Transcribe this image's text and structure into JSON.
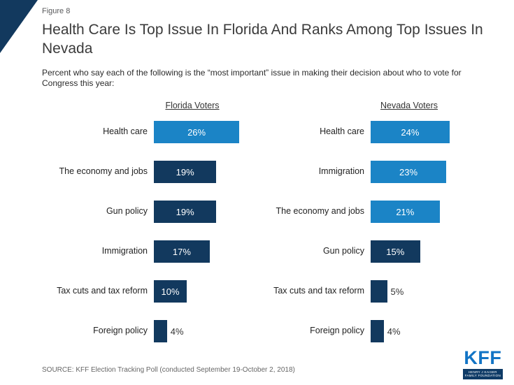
{
  "figure_label": "Figure 8",
  "title": "Health Care Is Top Issue In Florida And Ranks Among Top Issues In Nevada",
  "subtitle": "Percent who say each of the following is the “most important” issue in making their decision about who to vote for Congress this year:",
  "source": "SOURCE: KFF Election Tracking Poll (conducted September 19-October 2, 2018)",
  "logo": {
    "name": "KFF",
    "line1": "HENRY J KAISER",
    "line2": "FAMILY FOUNDATION"
  },
  "colors": {
    "light_blue": "#1b84c6",
    "navy": "#12395e",
    "title_text": "#3b3b3b",
    "source_text": "#666666",
    "logo_blue": "#1274c5"
  },
  "chart_data": [
    {
      "type": "bar",
      "orientation": "horizontal",
      "title": "Florida Voters",
      "unit": "%",
      "xlim": [
        0,
        30
      ],
      "categories": [
        "Health care",
        "The economy and jobs",
        "Gun policy",
        "Immigration",
        "Tax cuts and tax reform",
        "Foreign policy"
      ],
      "values": [
        26,
        19,
        19,
        17,
        10,
        4
      ],
      "highlighted": [
        true,
        false,
        false,
        false,
        false,
        false
      ]
    },
    {
      "type": "bar",
      "orientation": "horizontal",
      "title": "Nevada Voters",
      "unit": "%",
      "xlim": [
        0,
        30
      ],
      "categories": [
        "Health care",
        "Immigration",
        "The economy and jobs",
        "Gun policy",
        "Tax cuts and tax reform",
        "Foreign policy"
      ],
      "values": [
        24,
        23,
        21,
        15,
        5,
        4
      ],
      "highlighted": [
        true,
        true,
        true,
        false,
        false,
        false
      ]
    }
  ]
}
